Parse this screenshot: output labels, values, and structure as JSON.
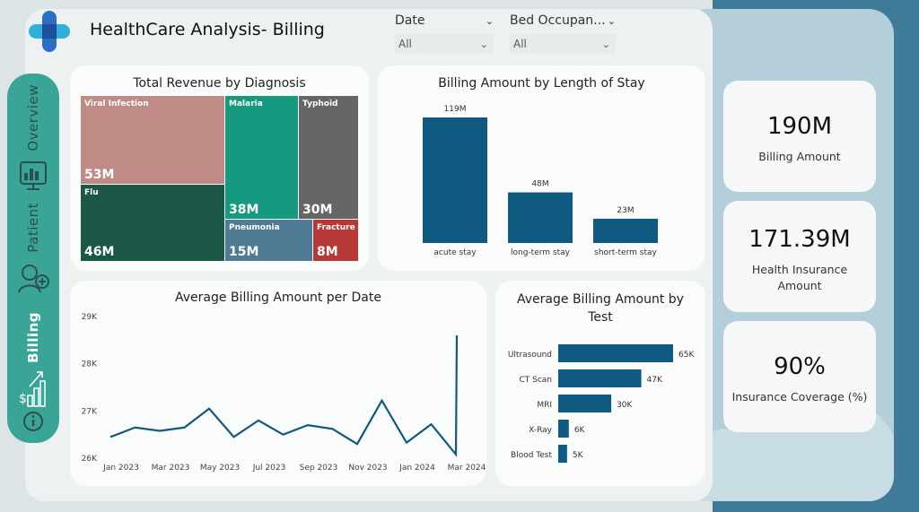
{
  "header": {
    "title": "HealthCare Analysis- Billing"
  },
  "filters": [
    {
      "label": "Date",
      "value": "All"
    },
    {
      "label": "Bed Occupan...",
      "value": "All"
    }
  ],
  "nav": {
    "items": [
      {
        "label": "Overview",
        "icon": "dashboard-monitor-icon"
      },
      {
        "label": "Patient",
        "icon": "patient-icon"
      },
      {
        "label": "Billing",
        "icon": "billing-chart-icon",
        "active": true
      }
    ],
    "info_icon": "info-icon"
  },
  "treemap": {
    "title": "Total Revenue by Diagnosis",
    "cells": [
      {
        "name": "Viral Infection",
        "value": "53M",
        "color": "#c08b87"
      },
      {
        "name": "Flu",
        "value": "46M",
        "color": "#1c5848"
      },
      {
        "name": "Malaria",
        "value": "38M",
        "color": "#159a80"
      },
      {
        "name": "Typhoid",
        "value": "30M",
        "color": "#666666"
      },
      {
        "name": "Pneumonia",
        "value": "15M",
        "color": "#4f7b95"
      },
      {
        "name": "Fracture",
        "value": "8M",
        "color": "#b83737"
      }
    ]
  },
  "stay_chart": {
    "title": "Billing Amount by Length of Stay",
    "chart_data": {
      "type": "bar",
      "categories": [
        "acute stay",
        "long-term stay",
        "short-term stay"
      ],
      "values": [
        119,
        48,
        23
      ],
      "labels": [
        "119M",
        "48M",
        "23M"
      ],
      "color": "#0e5a80"
    }
  },
  "line_chart": {
    "title": "Average Billing Amount per Date",
    "chart_data": {
      "type": "line",
      "y_ticks": [
        "29K",
        "28K",
        "27K",
        "26K"
      ],
      "ylim": [
        26000,
        29000
      ],
      "x_ticks": [
        "Jan 2023",
        "Mar 2023",
        "May 2023",
        "Jul 2023",
        "Sep 2023",
        "Nov 2023",
        "Jan 2024",
        "Mar 2024"
      ],
      "x": [
        "2023-01",
        "2023-02",
        "2023-03",
        "2023-04",
        "2023-05",
        "2023-06",
        "2023-07",
        "2023-08",
        "2023-09",
        "2023-10",
        "2023-11",
        "2023-12",
        "2024-01",
        "2024-02",
        "2024-03"
      ],
      "values": [
        26450,
        26650,
        26580,
        26650,
        27050,
        26450,
        26800,
        26500,
        26700,
        26620,
        26300,
        27220,
        26330,
        26720,
        26080
      ],
      "color": "#0e5a80"
    }
  },
  "test_chart": {
    "title": "Average Billing Amount by Test",
    "chart_data": {
      "type": "bar",
      "orientation": "horizontal",
      "categories": [
        "Ultrasound",
        "CT Scan",
        "MRI",
        "X-Ray",
        "Blood Test"
      ],
      "values": [
        65,
        47,
        30,
        6,
        5
      ],
      "labels": [
        "65K",
        "47K",
        "30K",
        "6K",
        "5K"
      ],
      "color": "#0e5a80"
    }
  },
  "kpis": [
    {
      "value": "190M",
      "label": "Billing Amount"
    },
    {
      "value": "171.39M",
      "label": "Health Insurance Amount"
    },
    {
      "value": "90%",
      "label": "Insurance Coverage (%)"
    }
  ]
}
